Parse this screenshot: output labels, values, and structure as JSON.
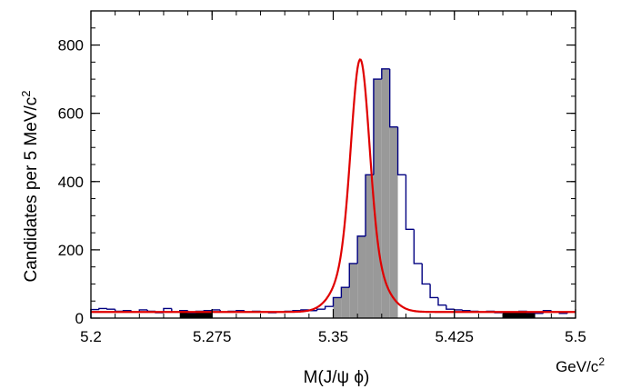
{
  "chart_data": {
    "type": "histogram",
    "xlabel": "M(J/ψ ϕ)",
    "xunit_text": "GeV/c",
    "xunit_power": "2",
    "ylabel_text": "Candidates per 5 MeV/c",
    "ylabel_power": "2",
    "xlim": [
      5.2,
      5.5
    ],
    "ylim": [
      0,
      900
    ],
    "xticks": [
      5.2,
      5.275,
      5.35,
      5.425,
      5.5
    ],
    "xtick_labels": [
      "5.2",
      "5.275",
      "5.35",
      "5.425",
      "5.5"
    ],
    "yticks": [
      0,
      200,
      400,
      600,
      800
    ],
    "ytick_labels": [
      "0",
      "200",
      "400",
      "600",
      "800"
    ],
    "bin_width": 0.005,
    "bin_edges_start": 5.2,
    "bin_counts": [
      25,
      28,
      26,
      20,
      22,
      18,
      24,
      20,
      16,
      28,
      18,
      22,
      16,
      20,
      22,
      24,
      18,
      20,
      22,
      18,
      20,
      18,
      16,
      18,
      20,
      22,
      24,
      22,
      26,
      34,
      60,
      90,
      160,
      240,
      420,
      700,
      730,
      560,
      420,
      260,
      160,
      100,
      60,
      38,
      26,
      24,
      22,
      20,
      18,
      20,
      16,
      18,
      18,
      20,
      16,
      14,
      22,
      18,
      14,
      18
    ],
    "signal_region": [
      5.35,
      5.39
    ],
    "sideband_regions": [
      [
        5.255,
        5.275
      ],
      [
        5.455,
        5.475
      ]
    ],
    "fit": {
      "color": "#e00000",
      "mean": 5.3667,
      "sigma_core": 0.0055,
      "sigma_wide": 0.0115,
      "amp_core": 540,
      "amp_wide": 200,
      "background_const": 18
    },
    "colors": {
      "histogram_line": "#000080",
      "signal_fill": "#999999",
      "sideband_fill": "#000000",
      "fit_line": "#e00000"
    }
  }
}
